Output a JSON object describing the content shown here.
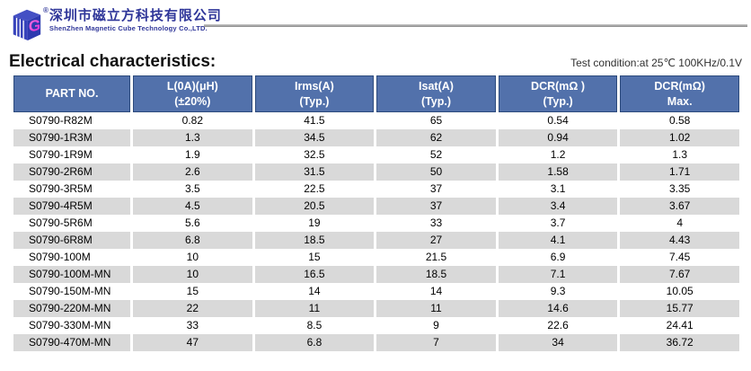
{
  "logo": {
    "icon": "magnetic-cube-logo",
    "registered_mark": "®",
    "company_cn": "深圳市磁立方科技有限公司",
    "company_en": "ShenZhen Magnetic Cube Technology Co.,LTD."
  },
  "page": {
    "title": "Electrical characteristics:",
    "test_condition": "Test condition:at 25℃ 100KHz/0.1V"
  },
  "colors": {
    "header_blue": "#5271ab",
    "header_border": "#2c4a7c",
    "alt_row_gray": "#d9d9d9",
    "logo_blue": "#2f3699",
    "logo_magenta": "#e83bd6",
    "divider_gray": "#9a9a9a"
  },
  "table": {
    "columns": [
      {
        "line1": "PART NO.",
        "line2": ""
      },
      {
        "line1": "L(0A)(μH)",
        "line2": "(±20%)"
      },
      {
        "line1": "Irms(A)",
        "line2": "(Typ.)"
      },
      {
        "line1": "Isat(A)",
        "line2": "(Typ.)"
      },
      {
        "line1": "DCR(mΩ )",
        "line2": "(Typ.)"
      },
      {
        "line1": "DCR(mΩ)",
        "line2": "Max."
      }
    ],
    "rows": [
      [
        "S0790-R82M",
        "0.82",
        "41.5",
        "65",
        "0.54",
        "0.58"
      ],
      [
        "S0790-1R3M",
        "1.3",
        "34.5",
        "62",
        "0.94",
        "1.02"
      ],
      [
        "S0790-1R9M",
        "1.9",
        "32.5",
        "52",
        "1.2",
        "1.3"
      ],
      [
        "S0790-2R6M",
        "2.6",
        "31.5",
        "50",
        "1.58",
        "1.71"
      ],
      [
        "S0790-3R5M",
        "3.5",
        "22.5",
        "37",
        "3.1",
        "3.35"
      ],
      [
        "S0790-4R5M",
        "4.5",
        "20.5",
        "37",
        "3.4",
        "3.67"
      ],
      [
        "S0790-5R6M",
        "5.6",
        "19",
        "33",
        "3.7",
        "4"
      ],
      [
        "S0790-6R8M",
        "6.8",
        "18.5",
        "27",
        "4.1",
        "4.43"
      ],
      [
        "S0790-100M",
        "10",
        "15",
        "21.5",
        "6.9",
        "7.45"
      ],
      [
        "S0790-100M-MN",
        "10",
        "16.5",
        "18.5",
        "7.1",
        "7.67"
      ],
      [
        "S0790-150M-MN",
        "15",
        "14",
        "14",
        "9.3",
        "10.05"
      ],
      [
        "S0790-220M-MN",
        "22",
        "11",
        "11",
        "14.6",
        "15.77"
      ],
      [
        "S0790-330M-MN",
        "33",
        "8.5",
        "9",
        "22.6",
        "24.41"
      ],
      [
        "S0790-470M-MN",
        "47",
        "6.8",
        "7",
        "34",
        "36.72"
      ]
    ]
  }
}
